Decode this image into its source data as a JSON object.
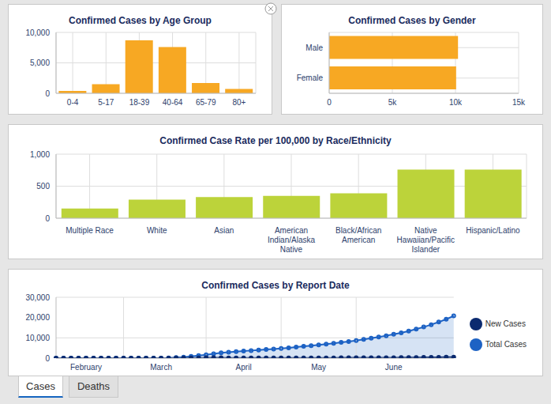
{
  "chart_data": [
    {
      "type": "bar",
      "title": "Confirmed Cases by Age Group",
      "categories": [
        "0-4",
        "5-17",
        "18-39",
        "40-64",
        "65-79",
        "80+"
      ],
      "values": [
        400,
        1500,
        8700,
        7600,
        1700,
        700
      ],
      "color": "#f7a823",
      "ylim": [
        0,
        10000
      ],
      "yticks": [
        0,
        {
          "value": 5000,
          "label": "5,000"
        },
        {
          "value": 10000,
          "label": "10,000"
        }
      ],
      "grid": true
    },
    {
      "type": "bar",
      "title": "Confirmed Cases by Gender",
      "orientation": "horizontal",
      "categories": [
        "Male",
        "Female"
      ],
      "values": [
        10200,
        10050
      ],
      "color": "#f7a823",
      "xlim": [
        0,
        15000
      ],
      "xticks": [
        0,
        {
          "value": 5000,
          "label": "5k"
        },
        {
          "value": 10000,
          "label": "10k"
        },
        {
          "value": 15000,
          "label": "15k"
        }
      ],
      "grid": true
    },
    {
      "type": "bar",
      "title": "Confirmed Case Rate per 100,000 by Race/Ethnicity",
      "categories": [
        "Multiple Race",
        "White",
        "Asian",
        "American Indian/Alaska Native",
        "Black/African American",
        "Native Hawaiian/Pacific Islander",
        "Hispanic/Latino"
      ],
      "values": [
        150,
        290,
        330,
        350,
        390,
        760,
        760
      ],
      "color": "#bcd33a",
      "ylim": [
        0,
        1000
      ],
      "yticks": [
        0,
        500,
        {
          "value": 1000,
          "label": "1,000"
        }
      ],
      "grid": true
    },
    {
      "type": "line",
      "title": "Confirmed Cases by Report Date",
      "categories": [
        null,
        null,
        null,
        null,
        "February",
        null,
        null,
        null,
        null,
        null,
        null,
        null,
        null,
        null,
        "March",
        null,
        null,
        null,
        null,
        null,
        null,
        null,
        null,
        null,
        null,
        "April",
        null,
        null,
        null,
        null,
        null,
        null,
        null,
        null,
        null,
        "May",
        null,
        null,
        null,
        null,
        null,
        null,
        null,
        null,
        null,
        "June",
        null,
        null,
        null,
        null,
        null,
        null,
        null,
        null
      ],
      "series": [
        {
          "name": "New Cases",
          "color": "#0b2a6f",
          "type": "line",
          "marker": "circle",
          "values": [
            0,
            0,
            0,
            0,
            0,
            0,
            0,
            0,
            0,
            0,
            0,
            1,
            1,
            3,
            8,
            20,
            50,
            85,
            115,
            135,
            150,
            150,
            150,
            120,
            100,
            85,
            85,
            85,
            85,
            85,
            100,
            100,
            115,
            115,
            115,
            115,
            135,
            135,
            150,
            150,
            165,
            180,
            185,
            200,
            215,
            235,
            250,
            285,
            315,
            350,
            385,
            430,
            470,
            530
          ]
        },
        {
          "name": "Total Cases",
          "color": "#1d62c4",
          "type": "area",
          "marker": "circle",
          "values": [
            0,
            0,
            0,
            0,
            0,
            0,
            0,
            0,
            0,
            0,
            0,
            2,
            5,
            15,
            40,
            100,
            250,
            500,
            850,
            1250,
            1700,
            2150,
            2600,
            2950,
            3250,
            3500,
            3750,
            4000,
            4250,
            4500,
            4800,
            5100,
            5450,
            5800,
            6150,
            6500,
            6900,
            7300,
            7750,
            8200,
            8700,
            9250,
            9800,
            10400,
            11050,
            11750,
            12500,
            13350,
            14300,
            15350,
            16500,
            17800,
            19200,
            20800
          ]
        }
      ],
      "ylim": [
        0,
        30000
      ],
      "yticks": [
        0,
        {
          "value": 10000,
          "label": "10,000"
        },
        {
          "value": 20000,
          "label": "20,000"
        },
        {
          "value": 30000,
          "label": "30,000"
        }
      ],
      "grid": true,
      "legend": "right"
    }
  ],
  "tabs": [
    "Cases",
    "Deaths"
  ]
}
